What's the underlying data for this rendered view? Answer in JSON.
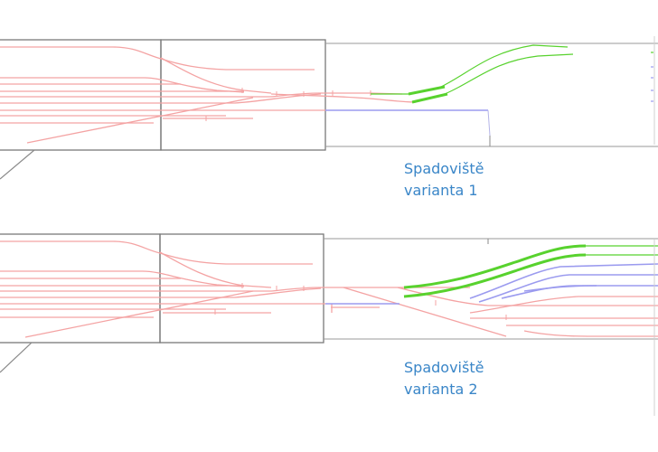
{
  "captions": {
    "variant1": {
      "line1": "Spadoviště",
      "line2": "varianta 1"
    },
    "variant2": {
      "line1": "Spadoviště",
      "line2": "varianta 2"
    }
  },
  "colors": {
    "frame": "#7a7a7a",
    "existing_track": "#f4a3a3",
    "new_track_blue": "#9b9bef",
    "new_track_green": "#58d22e",
    "caption": "#3a86c8"
  }
}
